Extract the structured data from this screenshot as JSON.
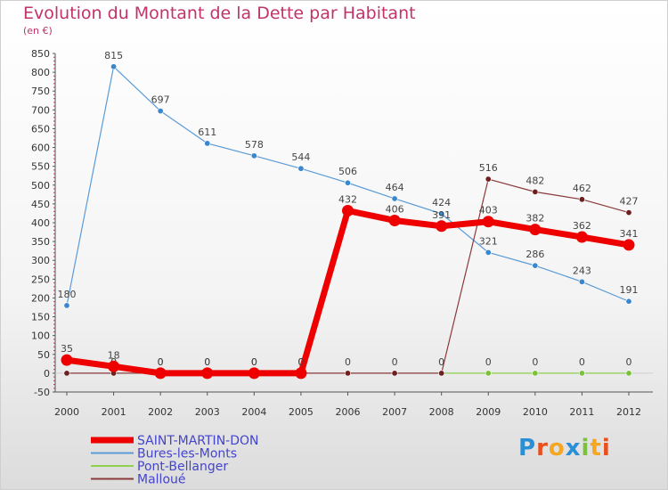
{
  "chart_data": {
    "type": "line",
    "title": "Evolution du Montant de la Dette par Habitant",
    "subtitle": "(en €)",
    "x": [
      "2000",
      "2001",
      "2002",
      "2003",
      "2004",
      "2005",
      "2006",
      "2007",
      "2008",
      "2009",
      "2010",
      "2011",
      "2012"
    ],
    "ylim": [
      -50,
      850
    ],
    "yticks": [
      -50,
      0,
      50,
      100,
      150,
      200,
      250,
      300,
      350,
      400,
      450,
      500,
      550,
      600,
      650,
      700,
      750,
      800,
      850
    ],
    "grid": false,
    "legend_position": "bottom-left",
    "series": [
      {
        "name": "Bures-les-Monts",
        "color": "#5b9bd5",
        "dot": "#3a87cd",
        "width": 1.2,
        "r": 3.2,
        "values": [
          180,
          815,
          697,
          611,
          578,
          544,
          506,
          464,
          424,
          321,
          286,
          243,
          191
        ],
        "labels": [
          "180",
          "815",
          "697",
          "611",
          "578",
          "544",
          "506",
          "464",
          "424",
          "321",
          "286",
          "243",
          "191"
        ]
      },
      {
        "name": "Pont-Bellanger",
        "color": "#8fd14f",
        "dot": "#7cc13d",
        "width": 1.2,
        "r": 3.2,
        "values": [
          null,
          null,
          null,
          null,
          null,
          null,
          null,
          null,
          0,
          0,
          0,
          0,
          0
        ],
        "labels": [
          "",
          "",
          "",
          "",
          "",
          "",
          "",
          "",
          "",
          "0",
          "0",
          "0",
          "0"
        ]
      },
      {
        "name": "Malloué",
        "color": "#8b3a3a",
        "dot": "#6e1f1f",
        "width": 1.2,
        "r": 3.2,
        "values": [
          0,
          0,
          0,
          0,
          0,
          0,
          0,
          0,
          0,
          516,
          482,
          462,
          427
        ],
        "labels": [
          "0",
          "0",
          "0",
          "0",
          "0",
          "0",
          "0",
          "0",
          "0",
          "516",
          "482",
          "462",
          "427"
        ]
      },
      {
        "name": "SAINT-MARTIN-DON",
        "color": "#ee0000",
        "dot": "#ee0000",
        "width": 7,
        "r": 6.5,
        "values": [
          35,
          18,
          0,
          0,
          0,
          0,
          432,
          406,
          391,
          403,
          382,
          362,
          341
        ],
        "labels": [
          "35",
          "18",
          "0",
          "0",
          "0",
          "0",
          "432",
          "406",
          "391",
          "403",
          "382",
          "362",
          "341"
        ]
      }
    ],
    "legend_order": [
      "SAINT-MARTIN-DON",
      "Bures-les-Monts",
      "Pont-Bellanger",
      "Malloué"
    ]
  },
  "logo": {
    "text": "Proxiti",
    "colors": [
      "#2b8fd6",
      "#e8501e",
      "#f5a623",
      "#2b8fd6",
      "#7cc13d",
      "#f5a623",
      "#e8501e"
    ]
  }
}
